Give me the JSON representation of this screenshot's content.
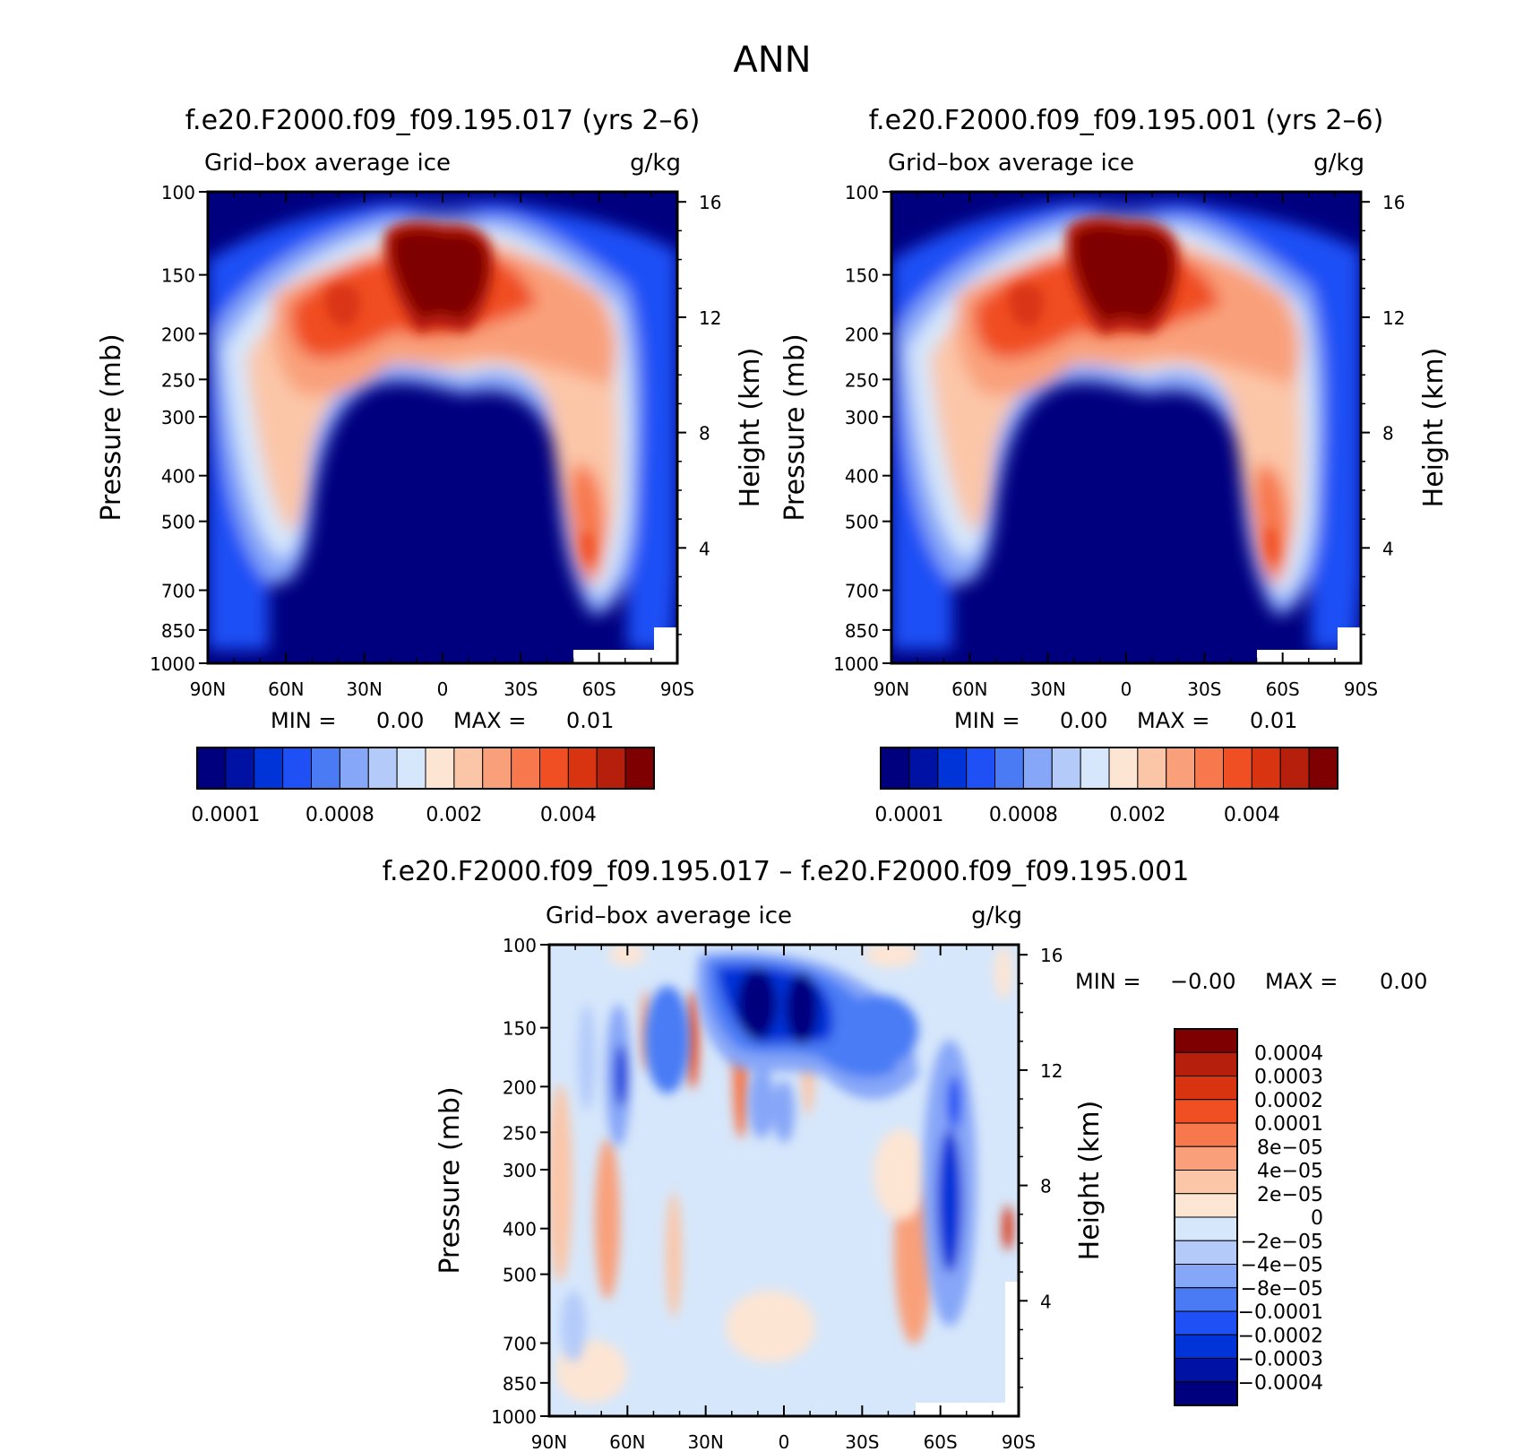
{
  "page_title": "ANN",
  "colors": {
    "abs_scale": [
      "#00007f",
      "#0012a3",
      "#0033d8",
      "#1e50f5",
      "#4a7bf5",
      "#86a6f8",
      "#b4cbfa",
      "#d6e7fb",
      "#fde5d3",
      "#fbc6a8",
      "#f9a07a",
      "#f7784d",
      "#f04e23",
      "#d93412",
      "#b51f0c",
      "#7f0000"
    ],
    "diff_scale": [
      "#00007f",
      "#0012a3",
      "#0033d8",
      "#1e50f5",
      "#4a7bf5",
      "#86a6f8",
      "#b4cbfa",
      "#d6e7fb",
      "#fde5d3",
      "#fbc6a8",
      "#f9a07a",
      "#f7784d",
      "#f04e23",
      "#d93412",
      "#b51f0c",
      "#7f0000"
    ]
  },
  "chart_data": [
    {
      "type": "heatmap",
      "title": "f.e20.F2000.f09_f09.195.017 (yrs 2–6)",
      "subtitle_left": "Grid–box average ice",
      "subtitle_right": "g/kg",
      "xlabel": "",
      "ylabel": "Pressure (mb)",
      "ylabel_right": "Height (km)",
      "x_ticks": [
        "90N",
        "60N",
        "30N",
        "0",
        "30S",
        "60S",
        "90S"
      ],
      "y_ticks": [
        "100",
        "150",
        "200",
        "250",
        "300",
        "400",
        "500",
        "700",
        "850",
        "1000"
      ],
      "y_ticks_right": [
        "16",
        "12",
        "8",
        "4"
      ],
      "min_label": "MIN =",
      "min_value": "0.00",
      "max_label": "MAX =",
      "max_value": "0.01",
      "colorbar_labels": [
        "0.0001",
        "0.0008",
        "0.002",
        "0.004"
      ],
      "xlim": [
        90,
        -90
      ],
      "ylim": [
        1000,
        100
      ]
    },
    {
      "type": "heatmap",
      "title": "f.e20.F2000.f09_f09.195.001 (yrs 2–6)",
      "subtitle_left": "Grid–box average ice",
      "subtitle_right": "g/kg",
      "xlabel": "",
      "ylabel": "Pressure (mb)",
      "ylabel_right": "Height (km)",
      "x_ticks": [
        "90N",
        "60N",
        "30N",
        "0",
        "30S",
        "60S",
        "90S"
      ],
      "y_ticks": [
        "100",
        "150",
        "200",
        "250",
        "300",
        "400",
        "500",
        "700",
        "850",
        "1000"
      ],
      "y_ticks_right": [
        "16",
        "12",
        "8",
        "4"
      ],
      "min_label": "MIN =",
      "min_value": "0.00",
      "max_label": "MAX =",
      "max_value": "0.01",
      "colorbar_labels": [
        "0.0001",
        "0.0008",
        "0.002",
        "0.004"
      ],
      "xlim": [
        90,
        -90
      ],
      "ylim": [
        1000,
        100
      ]
    },
    {
      "type": "heatmap",
      "title": "f.e20.F2000.f09_f09.195.017 – f.e20.F2000.f09_f09.195.001",
      "subtitle_left": "Grid–box average ice",
      "subtitle_right": "g/kg",
      "xlabel": "",
      "ylabel": "Pressure (mb)",
      "ylabel_right": "Height (km)",
      "x_ticks": [
        "90N",
        "60N",
        "30N",
        "0",
        "30S",
        "60S",
        "90S"
      ],
      "y_ticks": [
        "100",
        "150",
        "200",
        "250",
        "300",
        "400",
        "500",
        "700",
        "850",
        "1000"
      ],
      "y_ticks_right": [
        "16",
        "12",
        "8",
        "4"
      ],
      "min_label": "MIN =",
      "min_value": "−0.00",
      "max_label": "MAX =",
      "max_value": "0.00",
      "colorbar_labels": [
        "0.0004",
        "0.0003",
        "0.0002",
        "0.0001",
        "8e−05",
        "4e−05",
        "2e−05",
        "0",
        "−2e−05",
        "−4e−05",
        "−8e−05",
        "−0.0001",
        "−0.0002",
        "−0.0003",
        "−0.0004"
      ],
      "xlim": [
        90,
        -90
      ],
      "ylim": [
        1000,
        100
      ]
    }
  ]
}
